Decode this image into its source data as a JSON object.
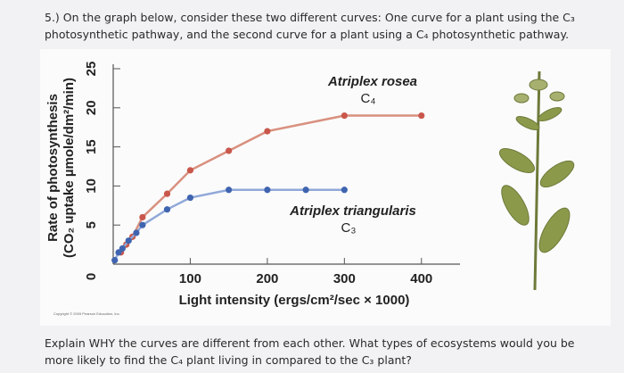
{
  "header": {
    "lines": [
      "5.) On the graph below, consider these two different curves: One curve for a plant using the C₃",
      "photosynthetic pathway, and the second curve for a plant using a C₄ photosynthetic pathway."
    ]
  },
  "footer": {
    "lines": [
      "Explain WHY the curves are different from each other.  What types of ecosystems would you be",
      "more likely to find the C₄ plant living in compared to the C₃ plant?"
    ]
  },
  "chart_data": {
    "type": "line",
    "x_label": "Light intensity (ergs/cm²/sec × 1000)",
    "y_label": [
      "Rate of photosynthesis",
      "(CO₂ uptake µmole/dm²/min)"
    ],
    "copyright": "Copyright © 2009 Pearson Education, Inc.",
    "xlim": [
      0,
      450
    ],
    "xticks": [
      100,
      200,
      300,
      400
    ],
    "ylim": [
      0,
      25
    ],
    "yticks": [
      0,
      5,
      10,
      15,
      20,
      25
    ],
    "annotations": [
      {
        "text": "Atriplex rosea",
        "sub": "C₄"
      },
      {
        "text": "Atriplex triangularis",
        "sub": "C₃"
      }
    ],
    "series": [
      {
        "color": "#c9574b",
        "line_color": "#d9907f",
        "x": [
          10,
          17,
          25,
          38,
          70,
          100,
          150,
          200,
          300,
          400
        ],
        "values": [
          1.5,
          2.5,
          3.5,
          6,
          9,
          12,
          14.5,
          17,
          19,
          19
        ]
      },
      {
        "color": "#3f64b0",
        "line_color": "#90a8d8",
        "x": [
          2,
          7,
          12,
          20,
          30,
          38,
          70,
          100,
          150,
          200,
          250,
          300
        ],
        "values": [
          0.5,
          1.5,
          2,
          3,
          4,
          5,
          7,
          8.5,
          9.5,
          9.5,
          9.5,
          9.5
        ]
      }
    ]
  }
}
